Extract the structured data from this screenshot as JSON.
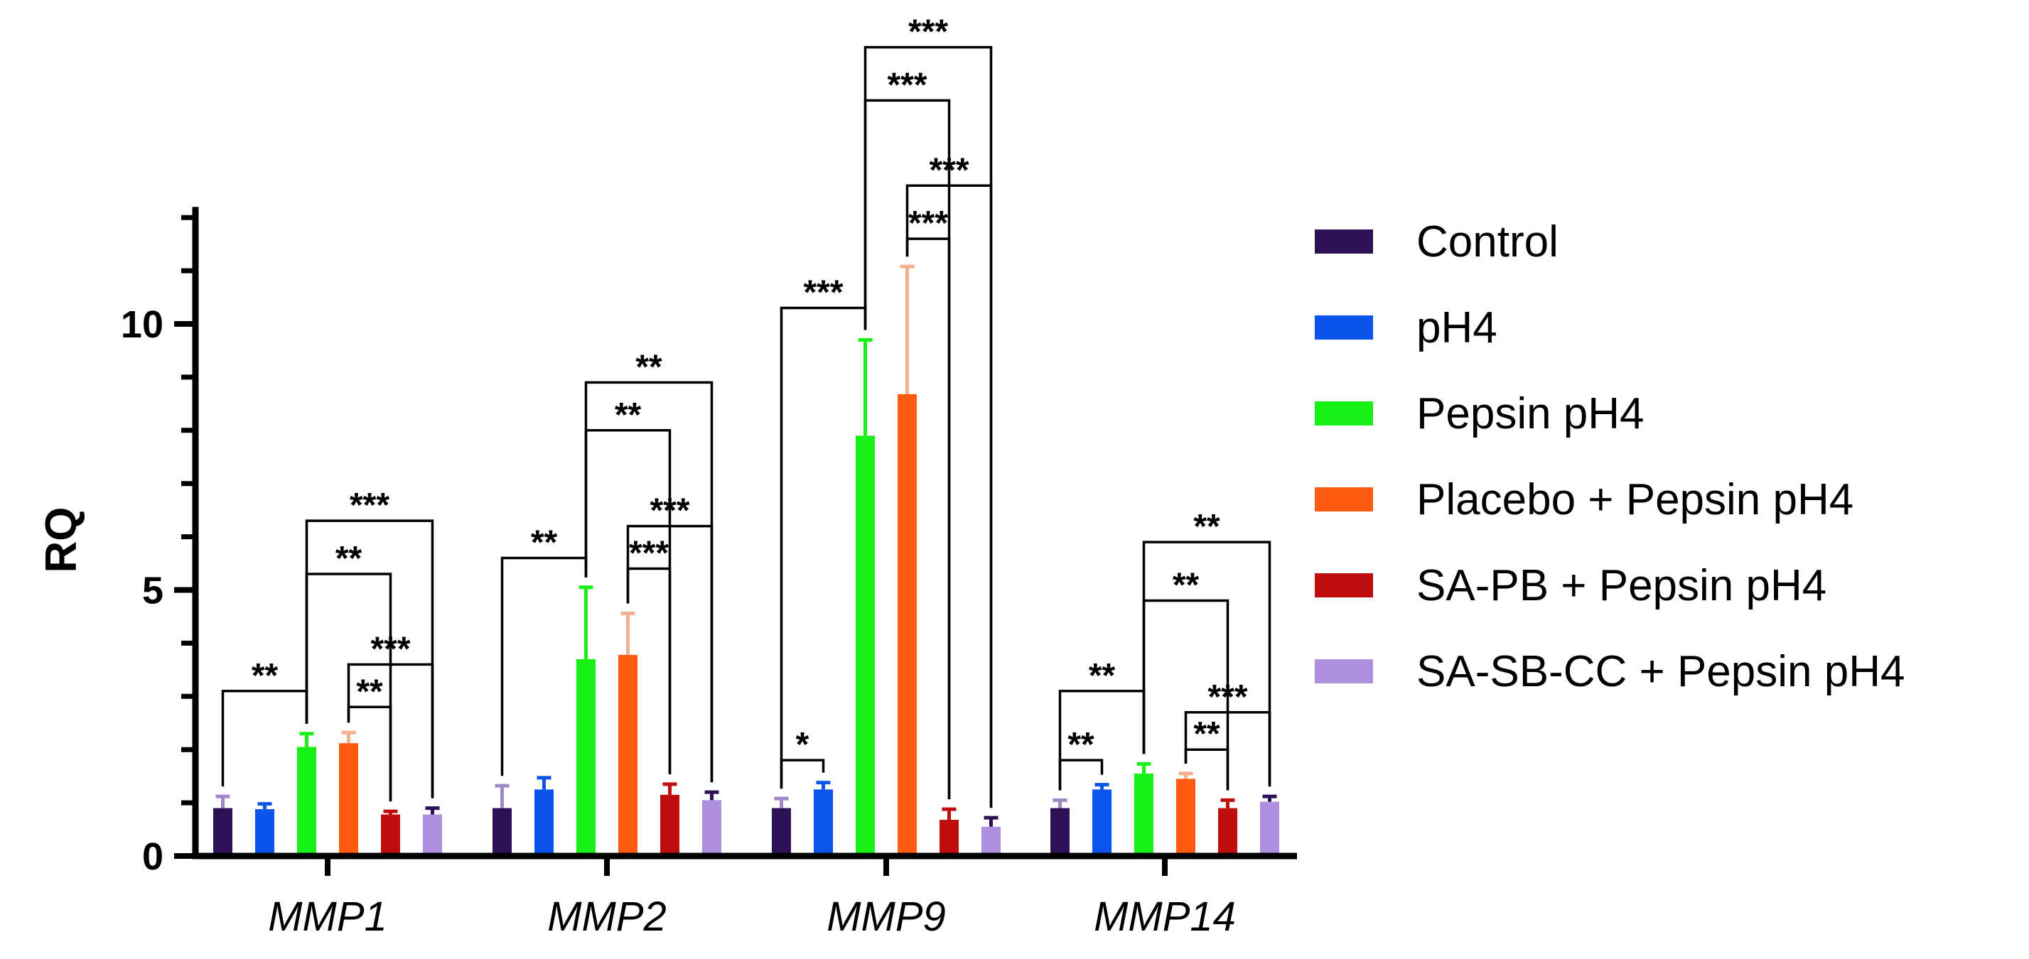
{
  "chart_data": {
    "type": "bar",
    "title": "",
    "xlabel": "",
    "ylabel": "RQ",
    "ylim": [
      0,
      12
    ],
    "yticks": [
      "0",
      "5",
      "10"
    ],
    "categories": [
      "MMP1",
      "MMP2",
      "MMP9",
      "MMP14"
    ],
    "series": [
      {
        "name": "Control",
        "color": "#2d1156",
        "error_color": "#9f88c8",
        "values": [
          0.9,
          0.9,
          0.9,
          0.9
        ],
        "errors": [
          0.22,
          0.42,
          0.18,
          0.15
        ]
      },
      {
        "name": "pH4",
        "color": "#0b55ea",
        "error_color": "#0b55ea",
        "values": [
          0.88,
          1.25,
          1.25,
          1.25
        ],
        "errors": [
          0.1,
          0.22,
          0.13,
          0.09
        ]
      },
      {
        "name": "Pepsin pH4",
        "color": "#18f018",
        "error_color": "#18f018",
        "values": [
          2.05,
          3.7,
          7.9,
          1.55
        ],
        "errors": [
          0.25,
          1.35,
          1.8,
          0.18
        ]
      },
      {
        "name": "Placebo + Pepsin pH4",
        "color": "#ff5a11",
        "error_color": "#f5b08d",
        "values": [
          2.12,
          3.78,
          8.68,
          1.45
        ],
        "errors": [
          0.2,
          0.78,
          2.4,
          0.1
        ]
      },
      {
        "name": "SA-PB + Pepsin pH4",
        "color": "#be0e0e",
        "error_color": "#be0e0e",
        "values": [
          0.78,
          1.15,
          0.68,
          0.9
        ],
        "errors": [
          0.06,
          0.2,
          0.2,
          0.15
        ]
      },
      {
        "name": "SA-SB-CC + Pepsin pH4",
        "color": "#ae8ede",
        "error_color": "#2d1156",
        "values": [
          0.78,
          1.05,
          0.55,
          1.02
        ],
        "errors": [
          0.12,
          0.15,
          0.17,
          0.1
        ]
      }
    ],
    "significance": [
      {
        "category": 0,
        "from": 0,
        "to": 2,
        "label": "**",
        "y": 3.1
      },
      {
        "category": 0,
        "from": 2,
        "to": 4,
        "label": "**",
        "y": 5.3
      },
      {
        "category": 0,
        "from": 2,
        "to": 5,
        "label": "***",
        "y": 6.3
      },
      {
        "category": 0,
        "from": 3,
        "to": 4,
        "label": "**",
        "y": 2.8
      },
      {
        "category": 0,
        "from": 3,
        "to": 5,
        "label": "***",
        "y": 3.6
      },
      {
        "category": 1,
        "from": 0,
        "to": 2,
        "label": "**",
        "y": 5.6
      },
      {
        "category": 1,
        "from": 2,
        "to": 4,
        "label": "**",
        "y": 8.0
      },
      {
        "category": 1,
        "from": 2,
        "to": 5,
        "label": "**",
        "y": 8.9
      },
      {
        "category": 1,
        "from": 3,
        "to": 4,
        "label": "***",
        "y": 5.4
      },
      {
        "category": 1,
        "from": 3,
        "to": 5,
        "label": "***",
        "y": 6.2
      },
      {
        "category": 2,
        "from": 0,
        "to": 1,
        "label": "*",
        "y": 1.8
      },
      {
        "category": 2,
        "from": 0,
        "to": 2,
        "label": "***",
        "y": 10.3
      },
      {
        "category": 2,
        "from": 2,
        "to": 4,
        "label": "***",
        "y": 14.2
      },
      {
        "category": 2,
        "from": 2,
        "to": 5,
        "label": "***",
        "y": 15.2
      },
      {
        "category": 2,
        "from": 3,
        "to": 4,
        "label": "***",
        "y": 11.6
      },
      {
        "category": 2,
        "from": 3,
        "to": 5,
        "label": "***",
        "y": 12.6
      },
      {
        "category": 3,
        "from": 0,
        "to": 1,
        "label": "**",
        "y": 1.8
      },
      {
        "category": 3,
        "from": 0,
        "to": 2,
        "label": "**",
        "y": 3.1
      },
      {
        "category": 3,
        "from": 2,
        "to": 4,
        "label": "**",
        "y": 4.8
      },
      {
        "category": 3,
        "from": 2,
        "to": 5,
        "label": "**",
        "y": 5.9
      },
      {
        "category": 3,
        "from": 3,
        "to": 4,
        "label": "**",
        "y": 2.0
      },
      {
        "category": 3,
        "from": 3,
        "to": 5,
        "label": "***",
        "y": 2.7
      }
    ],
    "legend_position": "right"
  }
}
